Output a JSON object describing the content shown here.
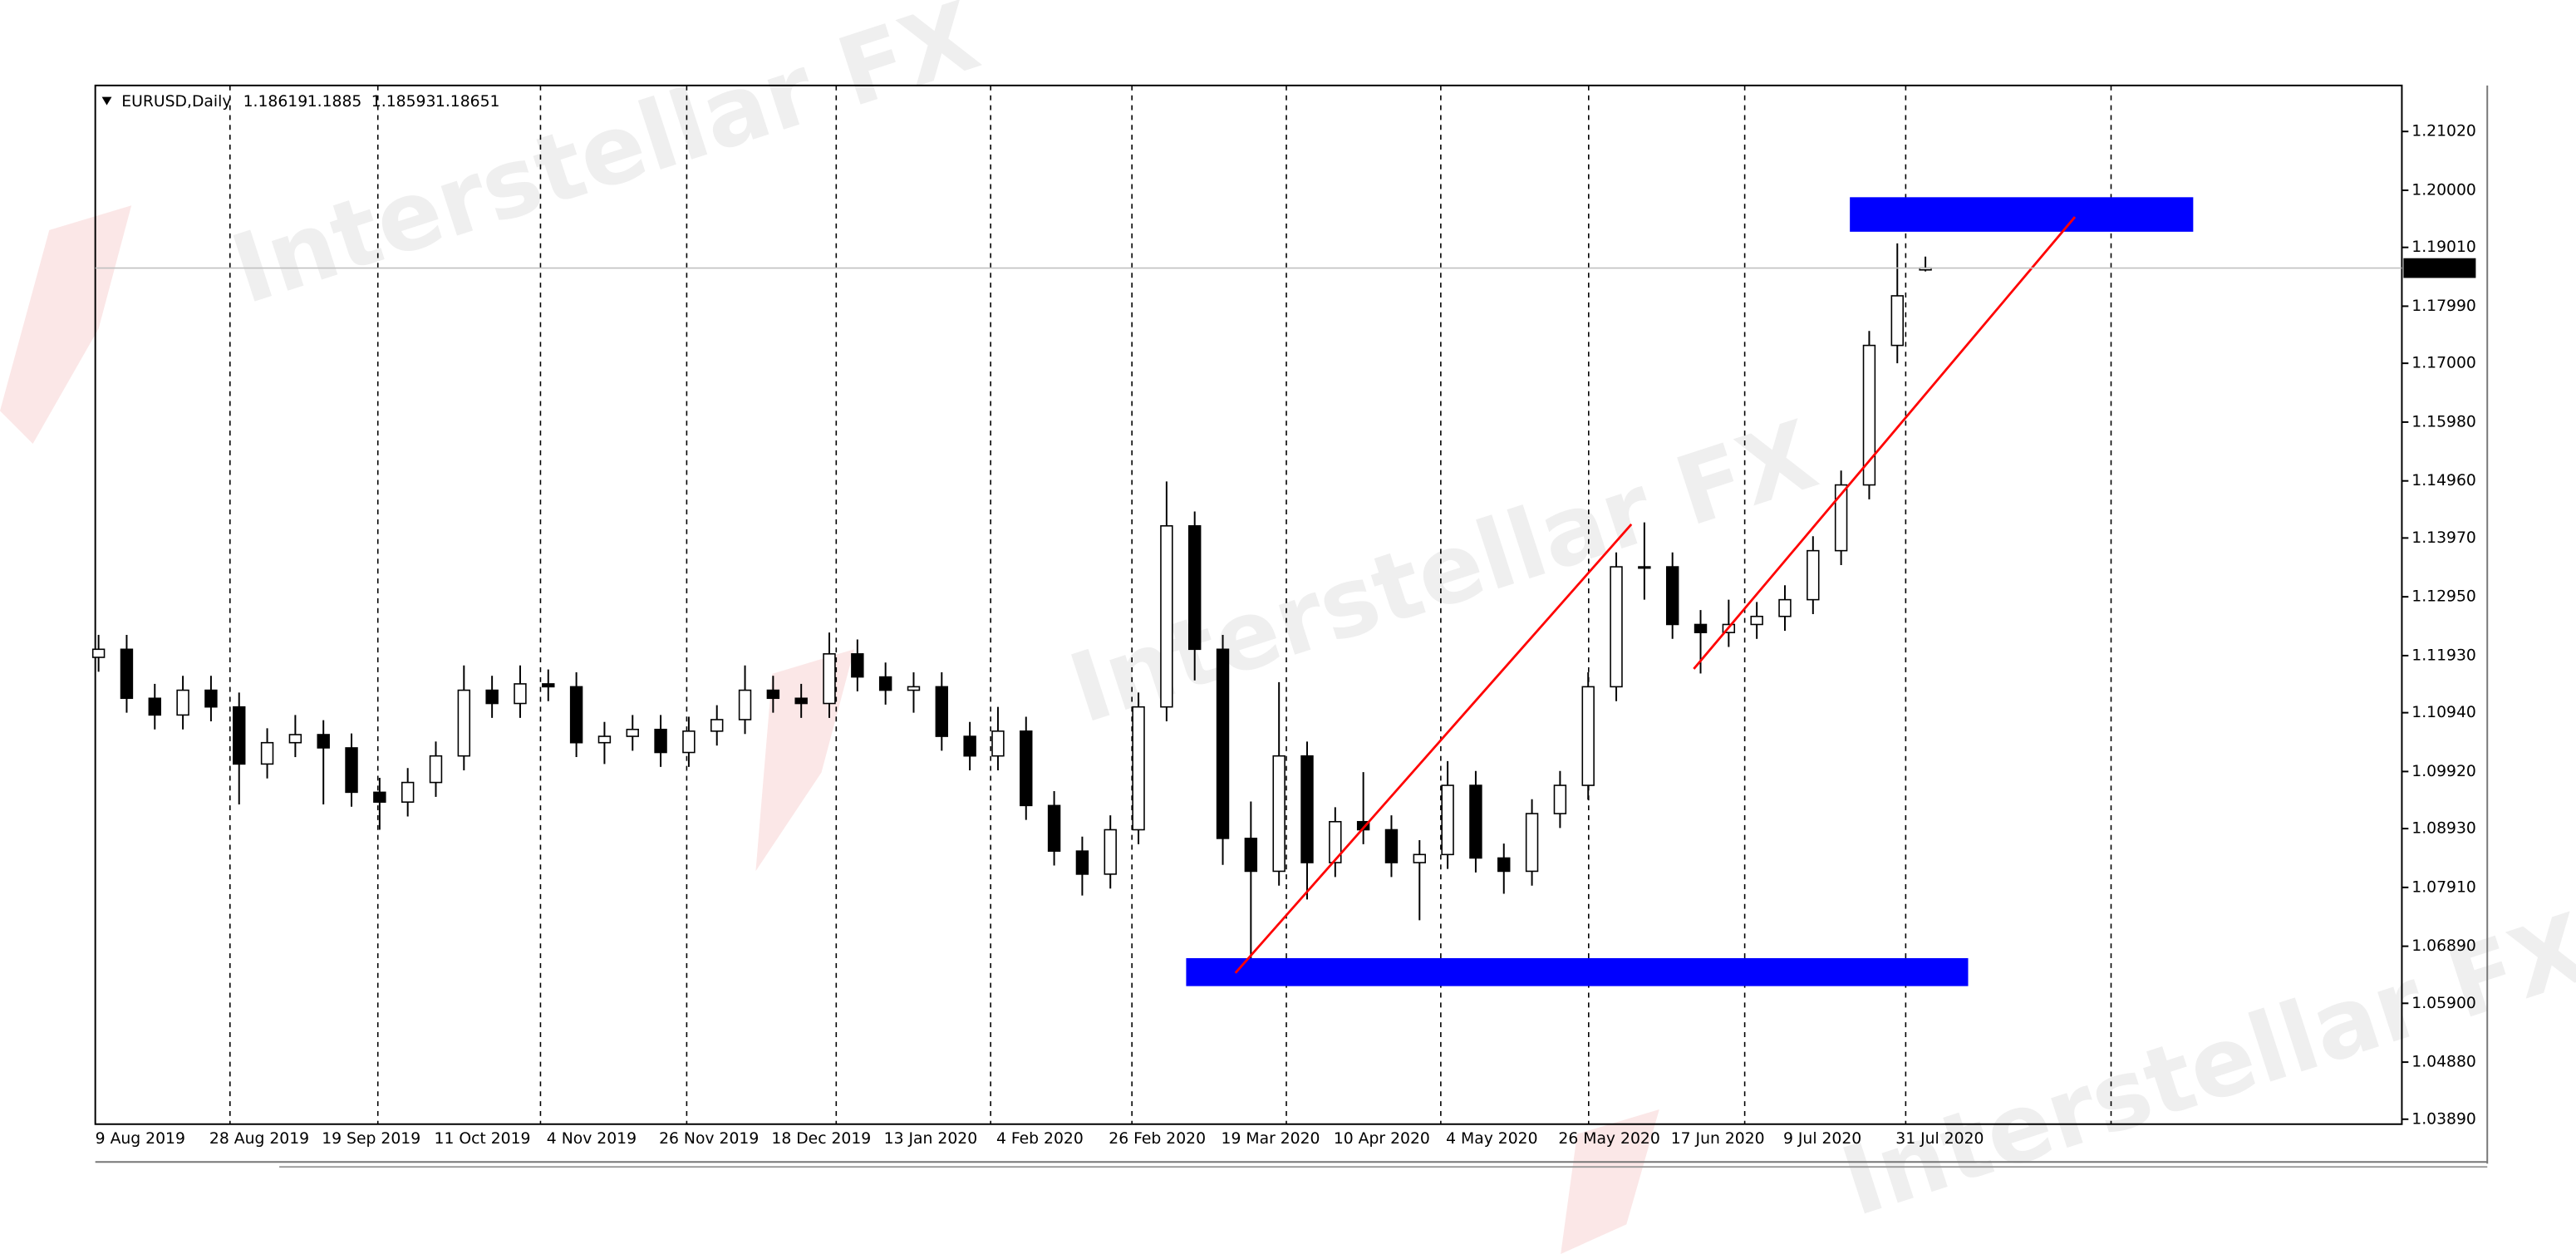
{
  "watermark": "Interstellar FX",
  "chart_data": {
    "type": "candlestick",
    "title": "EURUSD,Daily",
    "categories": [
      "9 Aug 2019",
      null,
      null,
      null,
      "28 Aug 2019",
      null,
      null,
      null,
      "19 Sep 2019",
      null,
      null,
      null,
      "11 Oct 2019",
      null,
      null,
      null,
      "4 Nov 2019",
      null,
      null,
      null,
      "26 Nov 2019",
      null,
      null,
      null,
      "18 Dec 2019",
      null,
      null,
      null,
      "13 Jan 2020",
      null,
      null,
      null,
      "4 Feb 2020",
      null,
      null,
      null,
      "26 Feb 2020",
      null,
      null,
      null,
      "19 Mar 2020",
      null,
      null,
      null,
      "10 Apr 2020",
      null,
      null,
      null,
      "4 May 2020",
      null,
      null,
      null,
      "26 May 2020",
      null,
      null,
      null,
      "17 Jun 2020",
      null,
      null,
      null,
      "9 Jul 2020",
      null,
      null,
      null,
      "31 Jul 2020",
      null
    ],
    "open": [
      1.119,
      1.1204,
      1.1119,
      1.109,
      1.1133,
      1.1104,
      1.1005,
      1.1042,
      1.1056,
      1.1033,
      1.0956,
      1.0939,
      1.0973,
      1.1019,
      1.1133,
      1.111,
      1.1144,
      1.1139,
      1.1042,
      1.1053,
      1.1065,
      1.1025,
      1.1062,
      1.1082,
      1.1133,
      1.1119,
      1.111,
      1.1196,
      1.1156,
      1.1133,
      1.1139,
      1.1053,
      1.1019,
      1.1062,
      1.0933,
      1.0854,
      1.0814,
      1.0891,
      1.1104,
      1.1418,
      1.1204,
      1.0876,
      1.0819,
      1.1019,
      1.0834,
      1.0905,
      1.0891,
      1.0834,
      1.0848,
      1.0968,
      1.0842,
      1.0819,
      1.0919,
      1.0968,
      1.1139,
      1.1347,
      1.1347,
      1.1247,
      1.1233,
      1.1247,
      1.1261,
      1.129,
      1.1375,
      1.1489,
      1.1731,
      1.18619
    ],
    "high": [
      1.1229,
      1.1229,
      1.1144,
      1.1158,
      1.1158,
      1.1129,
      1.1067,
      1.109,
      1.1081,
      1.1058,
      1.0981,
      1.0998,
      1.1044,
      1.1176,
      1.1158,
      1.1176,
      1.1169,
      1.1164,
      1.1078,
      1.109,
      1.109,
      1.1087,
      1.1107,
      1.1176,
      1.1158,
      1.1144,
      1.1233,
      1.1221,
      1.1181,
      1.1164,
      1.1164,
      1.1078,
      1.1104,
      1.1087,
      1.0958,
      1.0879,
      1.0916,
      1.1129,
      1.1495,
      1.1443,
      1.1229,
      1.094,
      1.1147,
      1.1044,
      1.093,
      1.0991,
      1.0916,
      1.0873,
      1.101,
      1.0993,
      1.0867,
      1.0944,
      1.0993,
      1.1164,
      1.1372,
      1.1424,
      1.1372,
      1.1272,
      1.129,
      1.1286,
      1.1315,
      1.14,
      1.1514,
      1.1756,
      1.1908,
      1.1885
    ],
    "low": [
      1.1165,
      1.1094,
      1.1065,
      1.1065,
      1.1079,
      1.0935,
      1.098,
      1.1017,
      1.0935,
      1.0931,
      1.0891,
      1.0914,
      1.0948,
      1.0994,
      1.1085,
      1.1085,
      1.1114,
      1.1017,
      1.1005,
      1.1028,
      1.1,
      1.1,
      1.1037,
      1.1057,
      1.1094,
      1.1085,
      1.1085,
      1.1131,
      1.1108,
      1.1094,
      1.1028,
      1.0994,
      1.0994,
      1.0908,
      1.0829,
      1.0777,
      1.0789,
      1.0866,
      1.1079,
      1.115,
      1.083,
      1.0636,
      1.0794,
      1.077,
      1.0809,
      1.0866,
      1.0809,
      1.0734,
      1.0823,
      1.0817,
      1.078,
      1.0794,
      1.0894,
      1.0943,
      1.1114,
      1.129,
      1.1222,
      1.1162,
      1.1208,
      1.1222,
      1.1236,
      1.1265,
      1.135,
      1.1464,
      1.17,
      1.18593
    ],
    "close": [
      1.1204,
      1.1119,
      1.109,
      1.1133,
      1.1104,
      1.1005,
      1.1042,
      1.1056,
      1.1033,
      1.0956,
      1.0939,
      1.0973,
      1.1019,
      1.1133,
      1.111,
      1.1144,
      1.1139,
      1.1042,
      1.1053,
      1.1065,
      1.1025,
      1.1062,
      1.1082,
      1.1133,
      1.1119,
      1.111,
      1.1196,
      1.1156,
      1.1133,
      1.1139,
      1.1053,
      1.1019,
      1.1062,
      1.0933,
      1.0854,
      1.0814,
      1.0891,
      1.1104,
      1.1418,
      1.1204,
      1.0876,
      1.0819,
      1.1019,
      1.0834,
      1.0905,
      1.0891,
      1.0834,
      1.0848,
      1.0968,
      1.0842,
      1.0819,
      1.0919,
      1.0968,
      1.1139,
      1.1347,
      1.1347,
      1.1247,
      1.1233,
      1.1247,
      1.1261,
      1.129,
      1.1375,
      1.1489,
      1.1731,
      1.1817,
      1.18651
    ],
    "ylim": [
      1.03804,
      1.21818
    ],
    "yticks": [
      {
        "value": 1.2102,
        "label": "1.21020"
      },
      {
        "value": 1.2,
        "label": "1.20000"
      },
      {
        "value": 1.1901,
        "label": "1.19010"
      },
      {
        "value": 1.1799,
        "label": "1.17990"
      },
      {
        "value": 1.17,
        "label": "1.17000"
      },
      {
        "value": 1.1598,
        "label": "1.15980"
      },
      {
        "value": 1.1496,
        "label": "1.14960"
      },
      {
        "value": 1.1397,
        "label": "1.13970"
      },
      {
        "value": 1.1295,
        "label": "1.12950"
      },
      {
        "value": 1.1193,
        "label": "1.11930"
      },
      {
        "value": 1.1094,
        "label": "1.10940"
      },
      {
        "value": 1.0992,
        "label": "1.09920"
      },
      {
        "value": 1.0893,
        "label": "1.08930"
      },
      {
        "value": 1.0791,
        "label": "1.07910"
      },
      {
        "value": 1.0689,
        "label": "1.06890"
      },
      {
        "value": 1.059,
        "label": "1.05900"
      },
      {
        "value": 1.0488,
        "label": "1.04880"
      },
      {
        "value": 1.0389,
        "label": "1.03890"
      }
    ],
    "color": "#000000",
    "up_fill": "#ffffff",
    "down_fill": "#000000"
  }
}
